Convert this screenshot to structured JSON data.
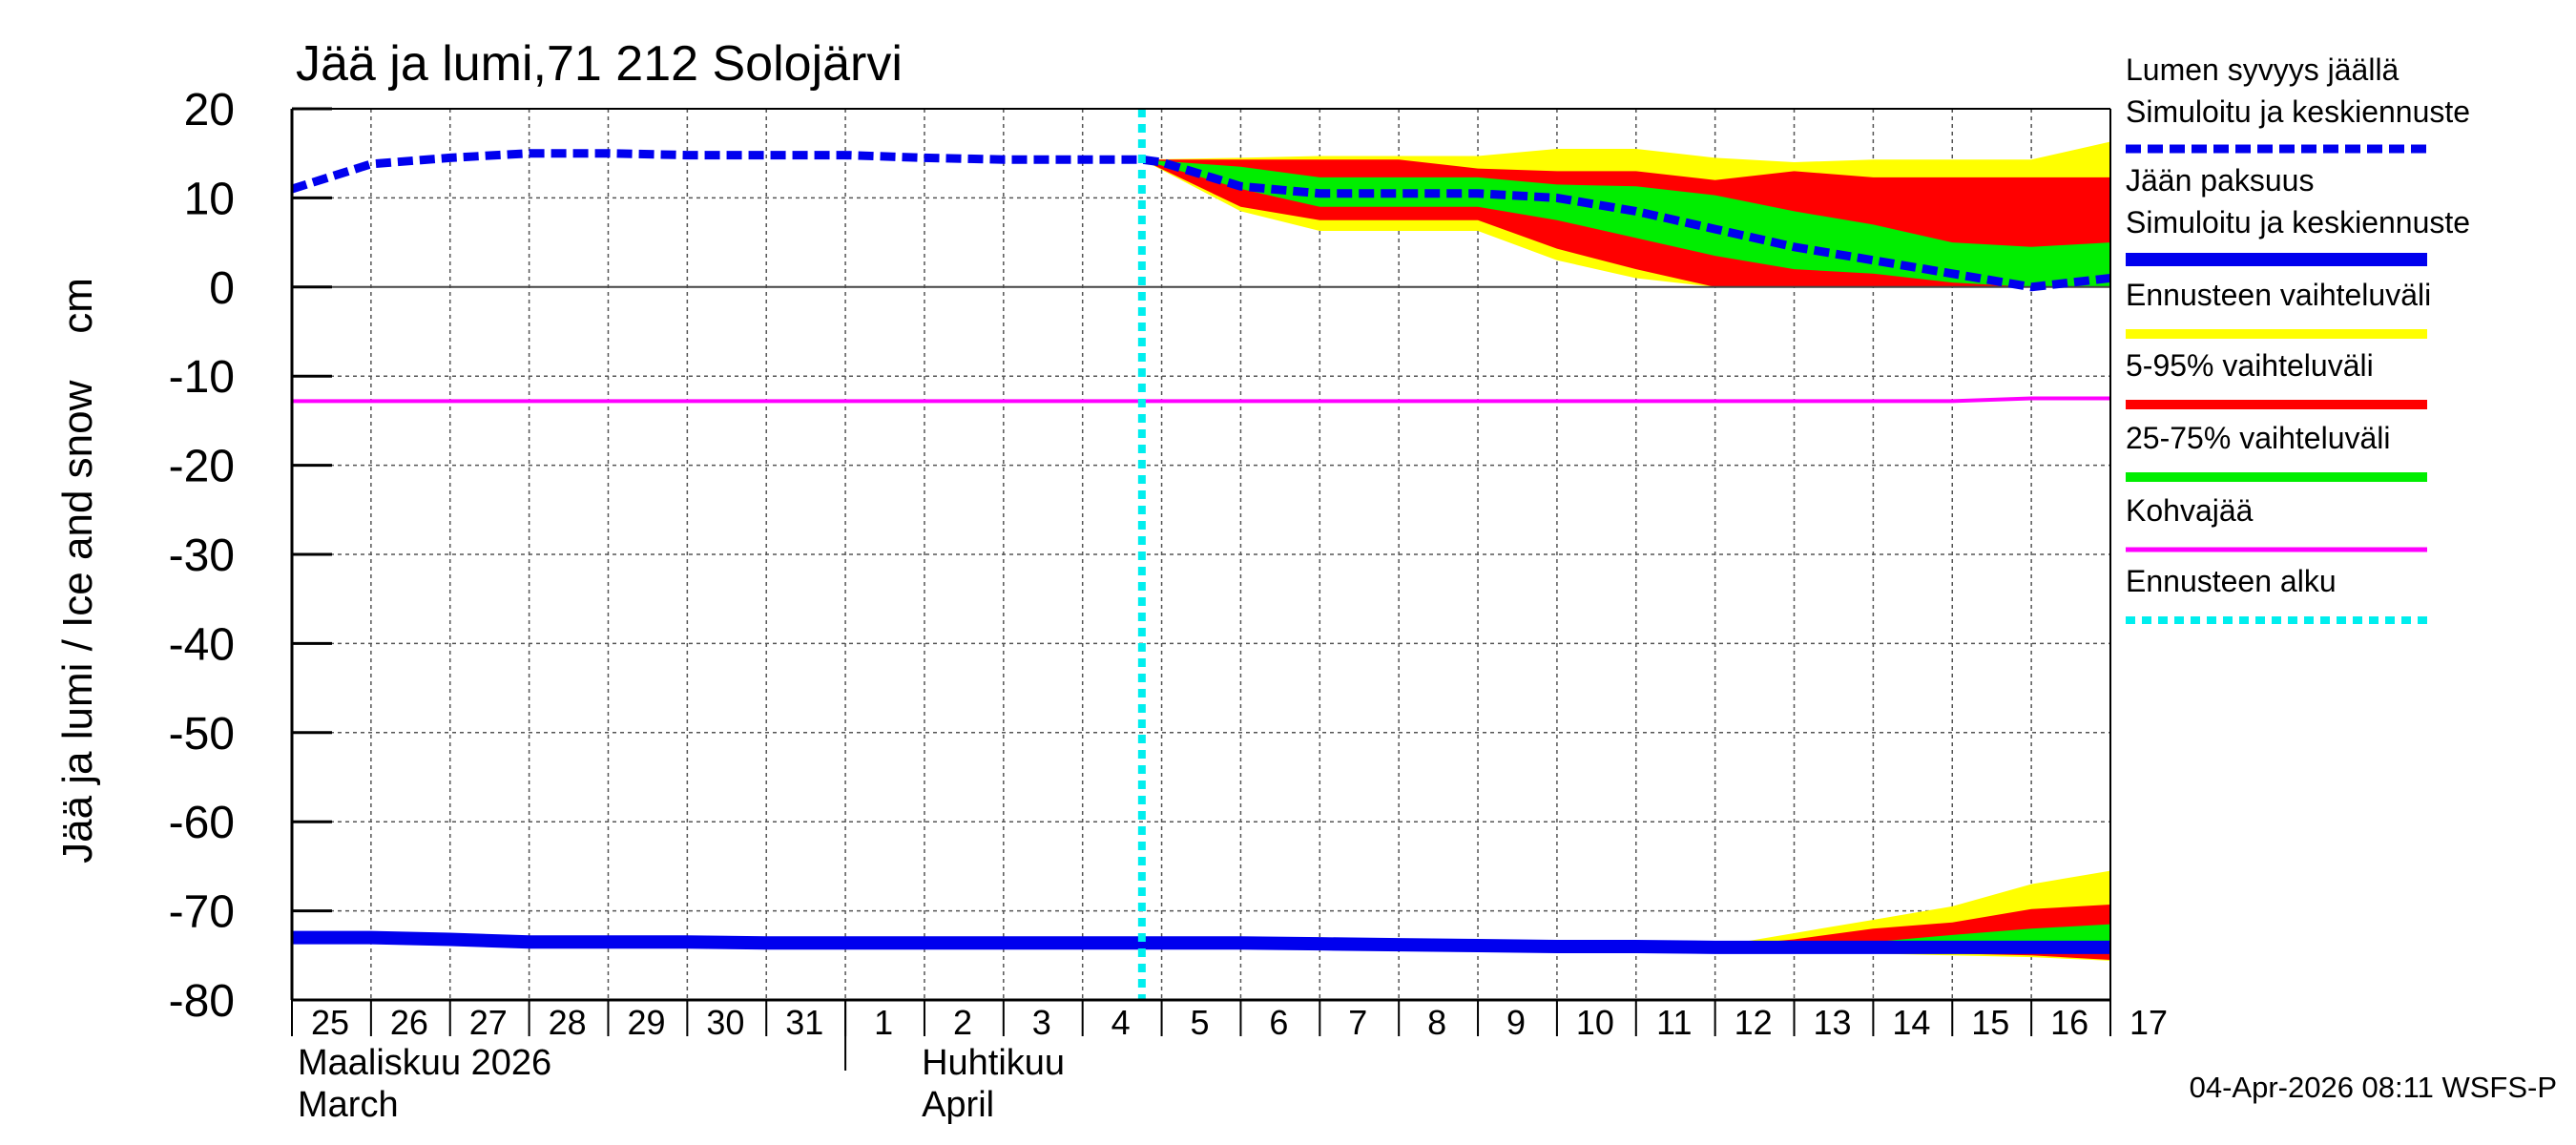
{
  "chart_data": {
    "type": "area",
    "title": "Jää ja lumi,71 212 Solojärvi",
    "ylabel": "Jää ja lumi / Ice and snow    cm",
    "ylim": [
      -80,
      20
    ],
    "y_ticks": [
      "20",
      "10",
      "0",
      "-10",
      "-20",
      "-30",
      "-40",
      "-50",
      "-60",
      "-70",
      "-80"
    ],
    "x_start_day": 25,
    "x_end_day": 48,
    "day_labels": [
      "25",
      "26",
      "27",
      "28",
      "29",
      "30",
      "31",
      "1",
      "2",
      "3",
      "4",
      "5",
      "6",
      "7",
      "8",
      "9",
      "10",
      "11",
      "12",
      "13",
      "14",
      "15",
      "16",
      "17"
    ],
    "month_labels": [
      {
        "line1": "Maaliskuu 2026",
        "line2": "March",
        "day": 25
      },
      {
        "line1": "Huhtikuu",
        "line2": "April",
        "day": 32
      }
    ],
    "forecast_start_day": 35.75,
    "legend": [
      {
        "line1": "Lumen syvyys jäällä",
        "line2": "Simuloitu ja keskiennuste",
        "color": "#0000ee",
        "style": "dashed"
      },
      {
        "line1": "Jään paksuus",
        "line2": "Simuloitu ja keskiennuste",
        "color": "#0000ee",
        "style": "solid"
      },
      {
        "line1": "Ennusteen vaihteluväli",
        "color": "#ffff00",
        "style": "solid"
      },
      {
        "line1": "5-95% vaihteluväli",
        "color": "#ff0000",
        "style": "solid"
      },
      {
        "line1": "25-75% vaihteluväli",
        "color": "#00ee00",
        "style": "solid"
      },
      {
        "line1": "Kohvajää",
        "color": "#ff00ff",
        "style": "solid"
      },
      {
        "line1": "Ennusteen alku",
        "color": "#00eeee",
        "style": "dotted"
      }
    ],
    "footer": "04-Apr-2026 08:11 WSFS-P",
    "series": {
      "snow_mean": {
        "x": [
          25,
          26,
          27,
          28,
          29,
          30,
          31,
          32,
          33,
          34,
          35,
          35.75,
          36,
          37,
          38,
          39,
          40,
          41,
          42,
          43,
          44,
          45,
          46,
          47,
          48
        ],
        "y": [
          11,
          13.8,
          14.5,
          15,
          15,
          14.8,
          14.8,
          14.8,
          14.5,
          14.3,
          14.3,
          14.3,
          14,
          11.3,
          10.5,
          10.5,
          10.5,
          10,
          8.5,
          6.5,
          4.5,
          3,
          1.5,
          0,
          1
        ]
      },
      "snow_band_outer": {
        "x": [
          35.75,
          37,
          38,
          39,
          40,
          41,
          42,
          43,
          44,
          45,
          46,
          47,
          48
        ],
        "upper": [
          14.3,
          14.5,
          14.7,
          14.7,
          14.7,
          15.5,
          15.5,
          14.5,
          14,
          14.3,
          14.3,
          14.3,
          16.3
        ],
        "lower": [
          14.3,
          8.5,
          6.3,
          6.3,
          6.3,
          3,
          1,
          0,
          0,
          0,
          0,
          0,
          0
        ]
      },
      "snow_band_90": {
        "x": [
          35.75,
          37,
          38,
          39,
          40,
          41,
          42,
          43,
          44,
          45,
          46,
          47,
          48
        ],
        "upper": [
          14.3,
          14.3,
          14.3,
          14.3,
          13.3,
          13,
          13,
          12,
          13,
          12.3,
          12.3,
          12.3,
          12.3
        ],
        "lower": [
          14.3,
          9,
          7.5,
          7.5,
          7.5,
          4.3,
          2,
          0,
          0,
          0,
          0,
          0,
          0
        ]
      },
      "snow_band_50": {
        "x": [
          35.75,
          37,
          38,
          39,
          40,
          41,
          42,
          43,
          44,
          45,
          46,
          47,
          48
        ],
        "upper": [
          14.3,
          13.5,
          12.3,
          12.3,
          12.3,
          11.5,
          11.3,
          10.3,
          8.5,
          7,
          5,
          4.5,
          5
        ],
        "lower": [
          14.3,
          11,
          9,
          9,
          9,
          7.5,
          5.5,
          3.5,
          2,
          1.5,
          0.5,
          0,
          0
        ]
      },
      "ice_mean": {
        "x": [
          25,
          26,
          27,
          28,
          29,
          30,
          31,
          32,
          33,
          34,
          35,
          36,
          37,
          38,
          39,
          40,
          41,
          42,
          43,
          44,
          45,
          46,
          47,
          48
        ],
        "y": [
          -73,
          -73,
          -73.2,
          -73.5,
          -73.5,
          -73.5,
          -73.6,
          -73.6,
          -73.6,
          -73.6,
          -73.6,
          -73.6,
          -73.6,
          -73.7,
          -73.8,
          -73.9,
          -74,
          -74,
          -74.1,
          -74.1,
          -74.1,
          -74.1,
          -74.1,
          -74.1
        ]
      },
      "ice_band_outer": {
        "x": [
          43,
          44,
          45,
          46,
          47,
          48
        ],
        "upper": [
          -74,
          -72.5,
          -71,
          -69.5,
          -67,
          -65.5
        ],
        "lower": [
          -74.2,
          -74.6,
          -74.8,
          -75,
          -75.2,
          -75.6
        ]
      },
      "ice_band_90": {
        "x": [
          43,
          44,
          45,
          46,
          47,
          48
        ],
        "upper": [
          -74,
          -73.2,
          -72,
          -71.3,
          -69.8,
          -69.3
        ],
        "lower": [
          -74.2,
          -74.5,
          -74.6,
          -74.8,
          -75,
          -75.5
        ]
      },
      "ice_band_50": {
        "x": [
          43,
          44,
          45,
          46,
          47,
          48
        ],
        "upper": [
          -74,
          -73.8,
          -73.5,
          -72.7,
          -72,
          -71.5
        ],
        "lower": [
          -74.2,
          -74.3,
          -74.4,
          -74.4,
          -74.5,
          -74.6
        ]
      },
      "slush_ice": {
        "x": [
          25,
          46,
          47,
          48
        ],
        "y": [
          -12.8,
          -12.8,
          -12.5,
          -12.5
        ]
      }
    }
  }
}
